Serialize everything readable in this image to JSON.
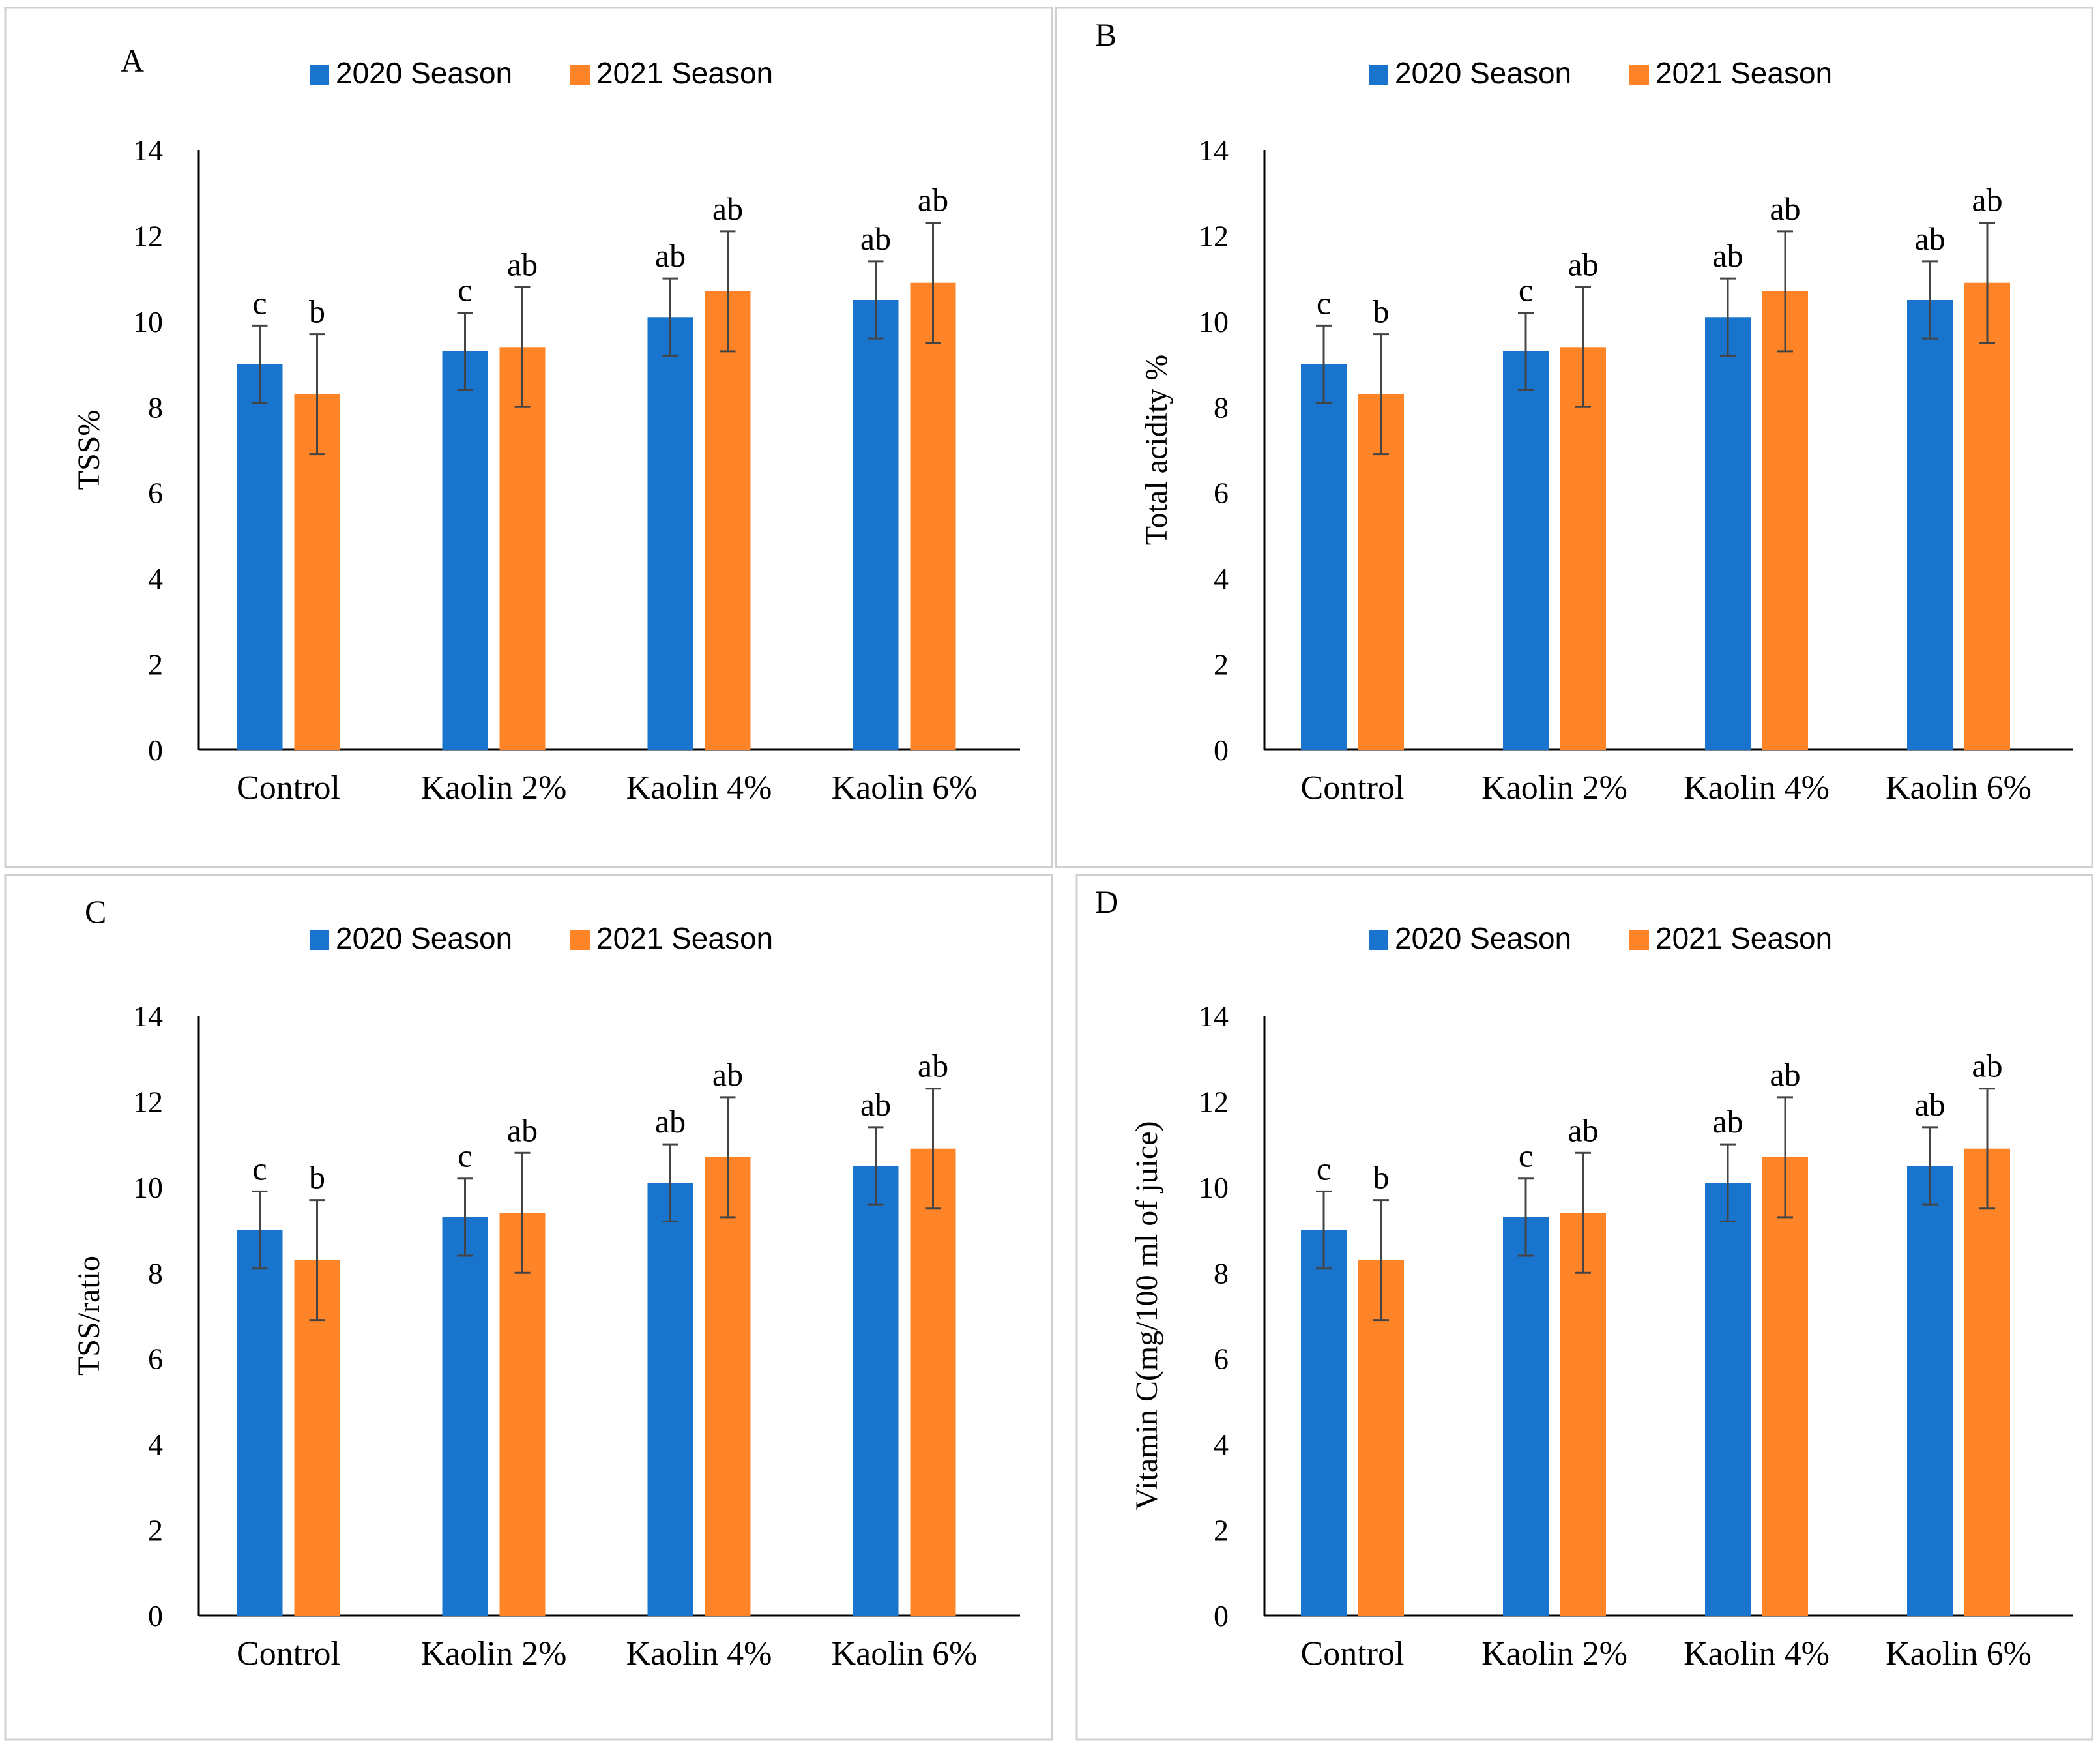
{
  "colors": {
    "series_2020": "#1874CD",
    "series_2021": "#FF8427"
  },
  "chart_data": [
    {
      "type": "bar",
      "panel": "A",
      "ylabel": "TSS%",
      "categories": [
        "Control",
        "Kaolin  2%",
        "Kaolin 4%",
        "Kaolin 6%"
      ],
      "ylim": [
        0,
        14
      ],
      "yticks": [
        0,
        2,
        4,
        6,
        8,
        10,
        12,
        14
      ],
      "legend": "top",
      "series": [
        {
          "name": "2020 Season",
          "values": [
            9.0,
            9.3,
            10.1,
            10.5
          ],
          "errors": [
            0.9,
            0.9,
            0.9,
            0.9
          ],
          "labels": [
            "c",
            "c",
            "ab",
            "ab"
          ]
        },
        {
          "name": "2021 Season",
          "values": [
            8.3,
            9.4,
            10.7,
            10.9
          ],
          "errors": [
            1.4,
            1.4,
            1.4,
            1.4
          ],
          "labels": [
            "b",
            "ab",
            "ab",
            "ab"
          ]
        }
      ]
    },
    {
      "type": "bar",
      "panel": "B",
      "ylabel": "Total acidity %",
      "categories": [
        "Control",
        "Kaolin  2%",
        "Kaolin 4%",
        "Kaolin 6%"
      ],
      "ylim": [
        0,
        14
      ],
      "yticks": [
        0,
        2,
        4,
        6,
        8,
        10,
        12,
        14
      ],
      "legend": "top",
      "series": [
        {
          "name": "2020 Season",
          "values": [
            9.0,
            9.3,
            10.1,
            10.5
          ],
          "errors": [
            0.9,
            0.9,
            0.9,
            0.9
          ],
          "labels": [
            "c",
            "c",
            "ab",
            "ab"
          ]
        },
        {
          "name": "2021 Season",
          "values": [
            8.3,
            9.4,
            10.7,
            10.9
          ],
          "errors": [
            1.4,
            1.4,
            1.4,
            1.4
          ],
          "labels": [
            "b",
            "ab",
            "ab",
            "ab"
          ]
        }
      ]
    },
    {
      "type": "bar",
      "panel": "C",
      "ylabel": "TSS/ratio",
      "categories": [
        "Control",
        "Kaolin  2%",
        "Kaolin 4%",
        "Kaolin 6%"
      ],
      "ylim": [
        0,
        14
      ],
      "yticks": [
        0,
        2,
        4,
        6,
        8,
        10,
        12,
        14
      ],
      "legend": "top",
      "series": [
        {
          "name": "2020 Season",
          "values": [
            9.0,
            9.3,
            10.1,
            10.5
          ],
          "errors": [
            0.9,
            0.9,
            0.9,
            0.9
          ],
          "labels": [
            "c",
            "c",
            "ab",
            "ab"
          ]
        },
        {
          "name": "2021 Season",
          "values": [
            8.3,
            9.4,
            10.7,
            10.9
          ],
          "errors": [
            1.4,
            1.4,
            1.4,
            1.4
          ],
          "labels": [
            "b",
            "ab",
            "ab",
            "ab"
          ]
        }
      ]
    },
    {
      "type": "bar",
      "panel": "D",
      "ylabel": "Vitamin C(mg/100 ml of juice)",
      "categories": [
        "Control",
        "Kaolin  2%",
        "Kaolin 4%",
        "Kaolin 6%"
      ],
      "ylim": [
        0,
        14
      ],
      "yticks": [
        0,
        2,
        4,
        6,
        8,
        10,
        12,
        14
      ],
      "legend": "top",
      "series": [
        {
          "name": "2020 Season",
          "values": [
            9.0,
            9.3,
            10.1,
            10.5
          ],
          "errors": [
            0.9,
            0.9,
            0.9,
            0.9
          ],
          "labels": [
            "c",
            "c",
            "ab",
            "ab"
          ]
        },
        {
          "name": "2021 Season",
          "values": [
            8.3,
            9.4,
            10.7,
            10.9
          ],
          "errors": [
            1.4,
            1.4,
            1.4,
            1.4
          ],
          "labels": [
            "b",
            "ab",
            "ab",
            "ab"
          ]
        }
      ]
    }
  ]
}
